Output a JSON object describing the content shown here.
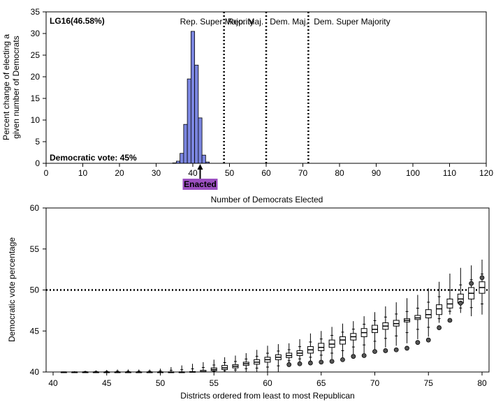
{
  "chart_data": [
    {
      "type": "bar",
      "ylabel_line1": "Percent change of electing a",
      "ylabel_line2": "given number of Democrats",
      "xlabel": "Number of Democrats Elected",
      "xlim": [
        0,
        120
      ],
      "ylim": [
        0,
        35
      ],
      "xticks": [
        0,
        10,
        20,
        30,
        40,
        50,
        60,
        70,
        80,
        90,
        100,
        110,
        120
      ],
      "yticks": [
        0,
        5,
        10,
        15,
        20,
        25,
        30,
        35
      ],
      "plan_label": "LG16(46.58%)",
      "vote_label": "Democratic vote: 45%",
      "enacted_label": "Enacted",
      "enacted_value": 42,
      "bar_color": "#7b86e0",
      "enacted_color": "#9b4fc0",
      "x": [
        35,
        36,
        37,
        38,
        39,
        40,
        41,
        42,
        43,
        44
      ],
      "values": [
        0.1,
        0.5,
        2.3,
        9.0,
        19.5,
        30.5,
        22.7,
        10.5,
        1.9,
        0.3
      ],
      "thresholds": [
        48.5,
        60,
        71.5
      ],
      "regions": [
        {
          "label": "Rep. Super Majority",
          "anchor": 36.5
        },
        {
          "label": "Rep. Maj.",
          "anchor": 49.5
        },
        {
          "label": "Dem. Maj.",
          "anchor": 61
        },
        {
          "label": "Dem. Super Majority",
          "anchor": 73
        }
      ]
    },
    {
      "type": "box",
      "ylabel": "Democratic vote percentage",
      "xlabel": "Districts ordered from least to most Republican",
      "xlim": [
        40,
        80
      ],
      "ylim": [
        40,
        60
      ],
      "xticks": [
        40,
        45,
        50,
        55,
        60,
        65,
        70,
        75,
        80
      ],
      "yticks": [
        40,
        45,
        50,
        55,
        60
      ],
      "reference_line": 50,
      "boxes": [
        {
          "x": 41,
          "min": 40,
          "q1": 40,
          "median": 40,
          "q3": 40,
          "max": 40.05
        },
        {
          "x": 42,
          "min": 40,
          "q1": 40,
          "median": 40,
          "q3": 40,
          "max": 40.1
        },
        {
          "x": 43,
          "min": 40,
          "q1": 40,
          "median": 40,
          "q3": 40,
          "max": 40.15
        },
        {
          "x": 44,
          "min": 40,
          "q1": 40,
          "median": 40,
          "q3": 40,
          "max": 40.2
        },
        {
          "x": 45,
          "min": 40,
          "q1": 40,
          "median": 40,
          "q3": 40,
          "max": 40.25
        },
        {
          "x": 46,
          "min": 40,
          "q1": 40,
          "median": 40,
          "q3": 40,
          "max": 40.3
        },
        {
          "x": 47,
          "min": 40,
          "q1": 40,
          "median": 40,
          "q3": 40,
          "max": 40.3
        },
        {
          "x": 48,
          "min": 40,
          "q1": 40,
          "median": 40,
          "q3": 40,
          "max": 40.3
        },
        {
          "x": 49,
          "min": 40,
          "q1": 40,
          "median": 40,
          "q3": 40,
          "max": 40.3
        },
        {
          "x": 50,
          "min": 40,
          "q1": 40,
          "median": 40,
          "q3": 40,
          "max": 40.4
        },
        {
          "x": 51,
          "min": 40,
          "q1": 40,
          "median": 40,
          "q3": 40,
          "max": 40.6
        },
        {
          "x": 52,
          "min": 40,
          "q1": 40,
          "median": 40,
          "q3": 40,
          "max": 40.8
        },
        {
          "x": 53,
          "min": 40,
          "q1": 40,
          "median": 40,
          "q3": 40.05,
          "max": 41.0
        },
        {
          "x": 54,
          "min": 40,
          "q1": 40,
          "median": 40.05,
          "q3": 40.2,
          "max": 41.2
        },
        {
          "x": 55,
          "min": 40,
          "q1": 40.15,
          "median": 40.3,
          "q3": 40.5,
          "max": 41.5
        },
        {
          "x": 56,
          "min": 40,
          "q1": 40.3,
          "median": 40.5,
          "q3": 40.8,
          "max": 41.8
        },
        {
          "x": 57,
          "min": 40,
          "q1": 40.5,
          "median": 40.7,
          "q3": 40.9,
          "max": 42.0
        },
        {
          "x": 58,
          "min": 40,
          "q1": 40.8,
          "median": 41.0,
          "q3": 41.2,
          "max": 42.3
        },
        {
          "x": 59,
          "min": 40,
          "q1": 40.95,
          "median": 41.2,
          "q3": 41.5,
          "max": 42.7
        },
        {
          "x": 60,
          "min": 40,
          "q1": 41.2,
          "median": 41.5,
          "q3": 41.8,
          "max": 43.2
        },
        {
          "x": 61,
          "min": 40,
          "q1": 41.5,
          "median": 41.8,
          "q3": 42.1,
          "max": 43.4
        },
        {
          "x": 62,
          "min": 41.0,
          "q1": 41.75,
          "median": 42.0,
          "q3": 42.3,
          "max": 43.5,
          "outliers": [
            40.9
          ]
        },
        {
          "x": 63,
          "min": 41.2,
          "q1": 42.0,
          "median": 42.3,
          "q3": 42.6,
          "max": 44.0,
          "outliers": [
            41.0
          ]
        },
        {
          "x": 64,
          "min": 41.3,
          "q1": 42.3,
          "median": 42.7,
          "q3": 43.1,
          "max": 44.7,
          "outliers": [
            41.1
          ]
        },
        {
          "x": 65,
          "min": 41.5,
          "q1": 42.6,
          "median": 43.0,
          "q3": 43.5,
          "max": 45.0,
          "outliers": [
            41.2
          ]
        },
        {
          "x": 66,
          "min": 41.6,
          "q1": 43.0,
          "median": 43.4,
          "q3": 43.9,
          "max": 45.5,
          "outliers": [
            41.3
          ]
        },
        {
          "x": 67,
          "min": 41.8,
          "q1": 43.4,
          "median": 43.9,
          "q3": 44.3,
          "max": 45.9,
          "outliers": [
            41.5
          ]
        },
        {
          "x": 68,
          "min": 42.2,
          "q1": 43.9,
          "median": 44.3,
          "q3": 44.7,
          "max": 46.2,
          "outliers": [
            41.9
          ]
        },
        {
          "x": 69,
          "min": 42.3,
          "q1": 44.3,
          "median": 44.8,
          "q3": 45.3,
          "max": 46.8,
          "outliers": [
            42.0
          ]
        },
        {
          "x": 70,
          "min": 42.7,
          "q1": 44.8,
          "median": 45.2,
          "q3": 45.7,
          "max": 47.3,
          "outliers": [
            42.5
          ]
        },
        {
          "x": 71,
          "min": 43.0,
          "q1": 45.2,
          "median": 45.6,
          "q3": 46.0,
          "max": 48.0,
          "outliers": [
            42.6
          ]
        },
        {
          "x": 72,
          "min": 43.2,
          "q1": 45.6,
          "median": 45.9,
          "q3": 46.3,
          "max": 48.5,
          "outliers": [
            42.7
          ]
        },
        {
          "x": 73,
          "min": 43.5,
          "q1": 46.1,
          "median": 46.3,
          "q3": 46.5,
          "max": 49.0,
          "outliers": [
            42.9
          ]
        },
        {
          "x": 74,
          "min": 44.0,
          "q1": 46.4,
          "median": 46.6,
          "q3": 46.9,
          "max": 49.4,
          "outliers": [
            43.6
          ]
        },
        {
          "x": 75,
          "min": 44.3,
          "q1": 46.6,
          "median": 47.0,
          "q3": 47.6,
          "max": 50.2,
          "outliers": [
            43.9
          ]
        },
        {
          "x": 76,
          "min": 46.0,
          "q1": 47.0,
          "median": 47.7,
          "q3": 48.2,
          "max": 51.0,
          "outliers": [
            45.4
          ]
        },
        {
          "x": 77,
          "min": 47.0,
          "q1": 47.8,
          "median": 48.3,
          "q3": 48.9,
          "max": 52.0,
          "outliers": [
            46.3
          ]
        },
        {
          "x": 78,
          "min": 47.2,
          "q1": 48.4,
          "median": 48.9,
          "q3": 49.5,
          "max": 52.7,
          "outliers": [
            48.4
          ]
        },
        {
          "x": 79,
          "min": 46.8,
          "q1": 48.9,
          "median": 49.6,
          "q3": 50.3,
          "max": 53.0,
          "outliers": [
            50.8
          ]
        },
        {
          "x": 80,
          "min": 47.0,
          "q1": 49.6,
          "median": 50.3,
          "q3": 51.0,
          "max": 53.7,
          "outliers": [
            51.5
          ]
        }
      ]
    }
  ]
}
